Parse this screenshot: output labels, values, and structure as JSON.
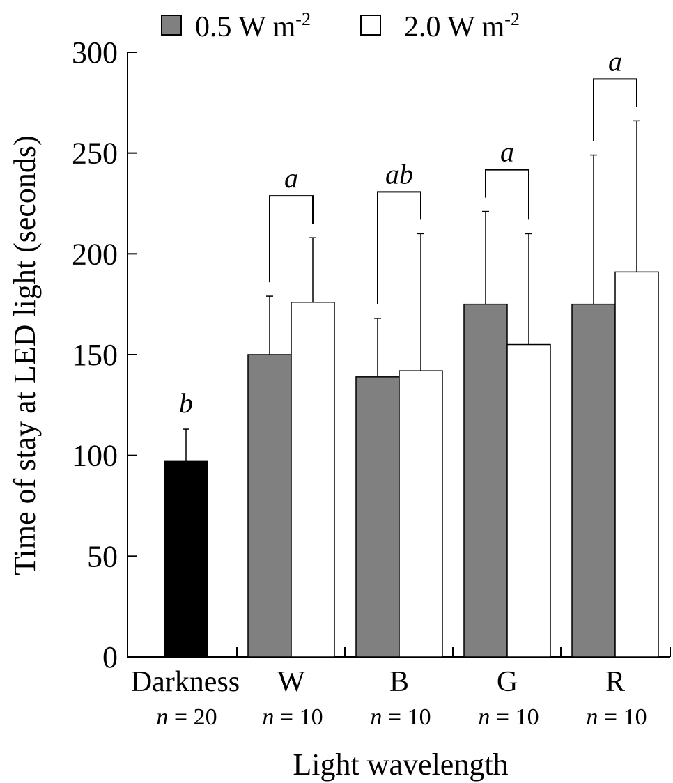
{
  "chart_data": {
    "type": "bar",
    "xlabel": "Light wavelength",
    "ylabel": "Time of stay at LED light (seconds)",
    "ylim": [
      0,
      300
    ],
    "yticks": [
      "0",
      "50",
      "100",
      "150",
      "200",
      "250",
      "300"
    ],
    "grid": false,
    "legend_position": "top",
    "categories": [
      "Darkness",
      "W",
      "B",
      "G",
      "R"
    ],
    "sample_sizes": [
      "20",
      "10",
      "10",
      "10",
      "10"
    ],
    "sample_size_symbol": "n",
    "darkness": {
      "value": 97,
      "error": 16,
      "significance": "b",
      "color": "#000000"
    },
    "series": [
      {
        "name": "0.5 W m",
        "name_superscript": "-2",
        "color": "#808080",
        "values": [
          null,
          150,
          139,
          175,
          175
        ],
        "errors": [
          null,
          29,
          29,
          46,
          74
        ]
      },
      {
        "name": "2.0 W m",
        "name_superscript": "-2",
        "color": "#ffffff",
        "values": [
          null,
          176,
          142,
          155,
          191
        ],
        "errors": [
          null,
          32,
          68,
          55,
          75
        ]
      }
    ],
    "significance": [
      null,
      "a",
      "ab",
      "a",
      "a"
    ]
  }
}
